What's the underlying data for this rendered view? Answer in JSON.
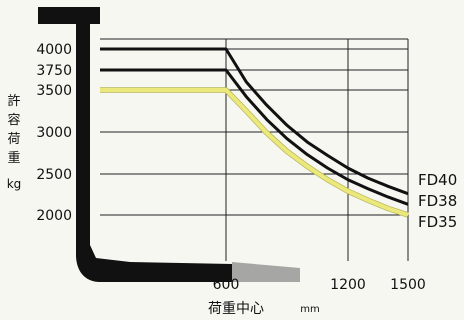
{
  "chart_data": {
    "type": "line",
    "ylabel": "許容荷重 kg",
    "xlabel": "荷重中心 mm",
    "x_ticks": [
      600,
      1200,
      1500
    ],
    "y_ticks": [
      4000,
      3750,
      3500,
      3000,
      2500,
      2000
    ],
    "xlim": [
      0,
      1500
    ],
    "ylim": [
      2000,
      4000
    ],
    "grid": true,
    "legend": "right, at line ends",
    "series": [
      {
        "name": "FD40",
        "color": "#111111",
        "x": [
          0,
          600,
          700,
          800,
          900,
          1000,
          1100,
          1200,
          1300,
          1400,
          1500
        ],
        "y": [
          4000,
          4000,
          3600,
          3320,
          3080,
          2880,
          2720,
          2570,
          2450,
          2350,
          2260
        ]
      },
      {
        "name": "FD38",
        "color": "#111111",
        "x": [
          0,
          600,
          700,
          800,
          900,
          1000,
          1100,
          1200,
          1300,
          1400,
          1500
        ],
        "y": [
          3750,
          3750,
          3420,
          3150,
          2920,
          2730,
          2570,
          2430,
          2320,
          2220,
          2130
        ]
      },
      {
        "name": "FD35",
        "color": "#ece97c",
        "x": [
          0,
          600,
          700,
          800,
          900,
          1000,
          1100,
          1200,
          1300,
          1400,
          1500
        ],
        "y": [
          3500,
          3500,
          3250,
          2990,
          2770,
          2590,
          2430,
          2290,
          2180,
          2080,
          2000
        ]
      }
    ]
  }
}
